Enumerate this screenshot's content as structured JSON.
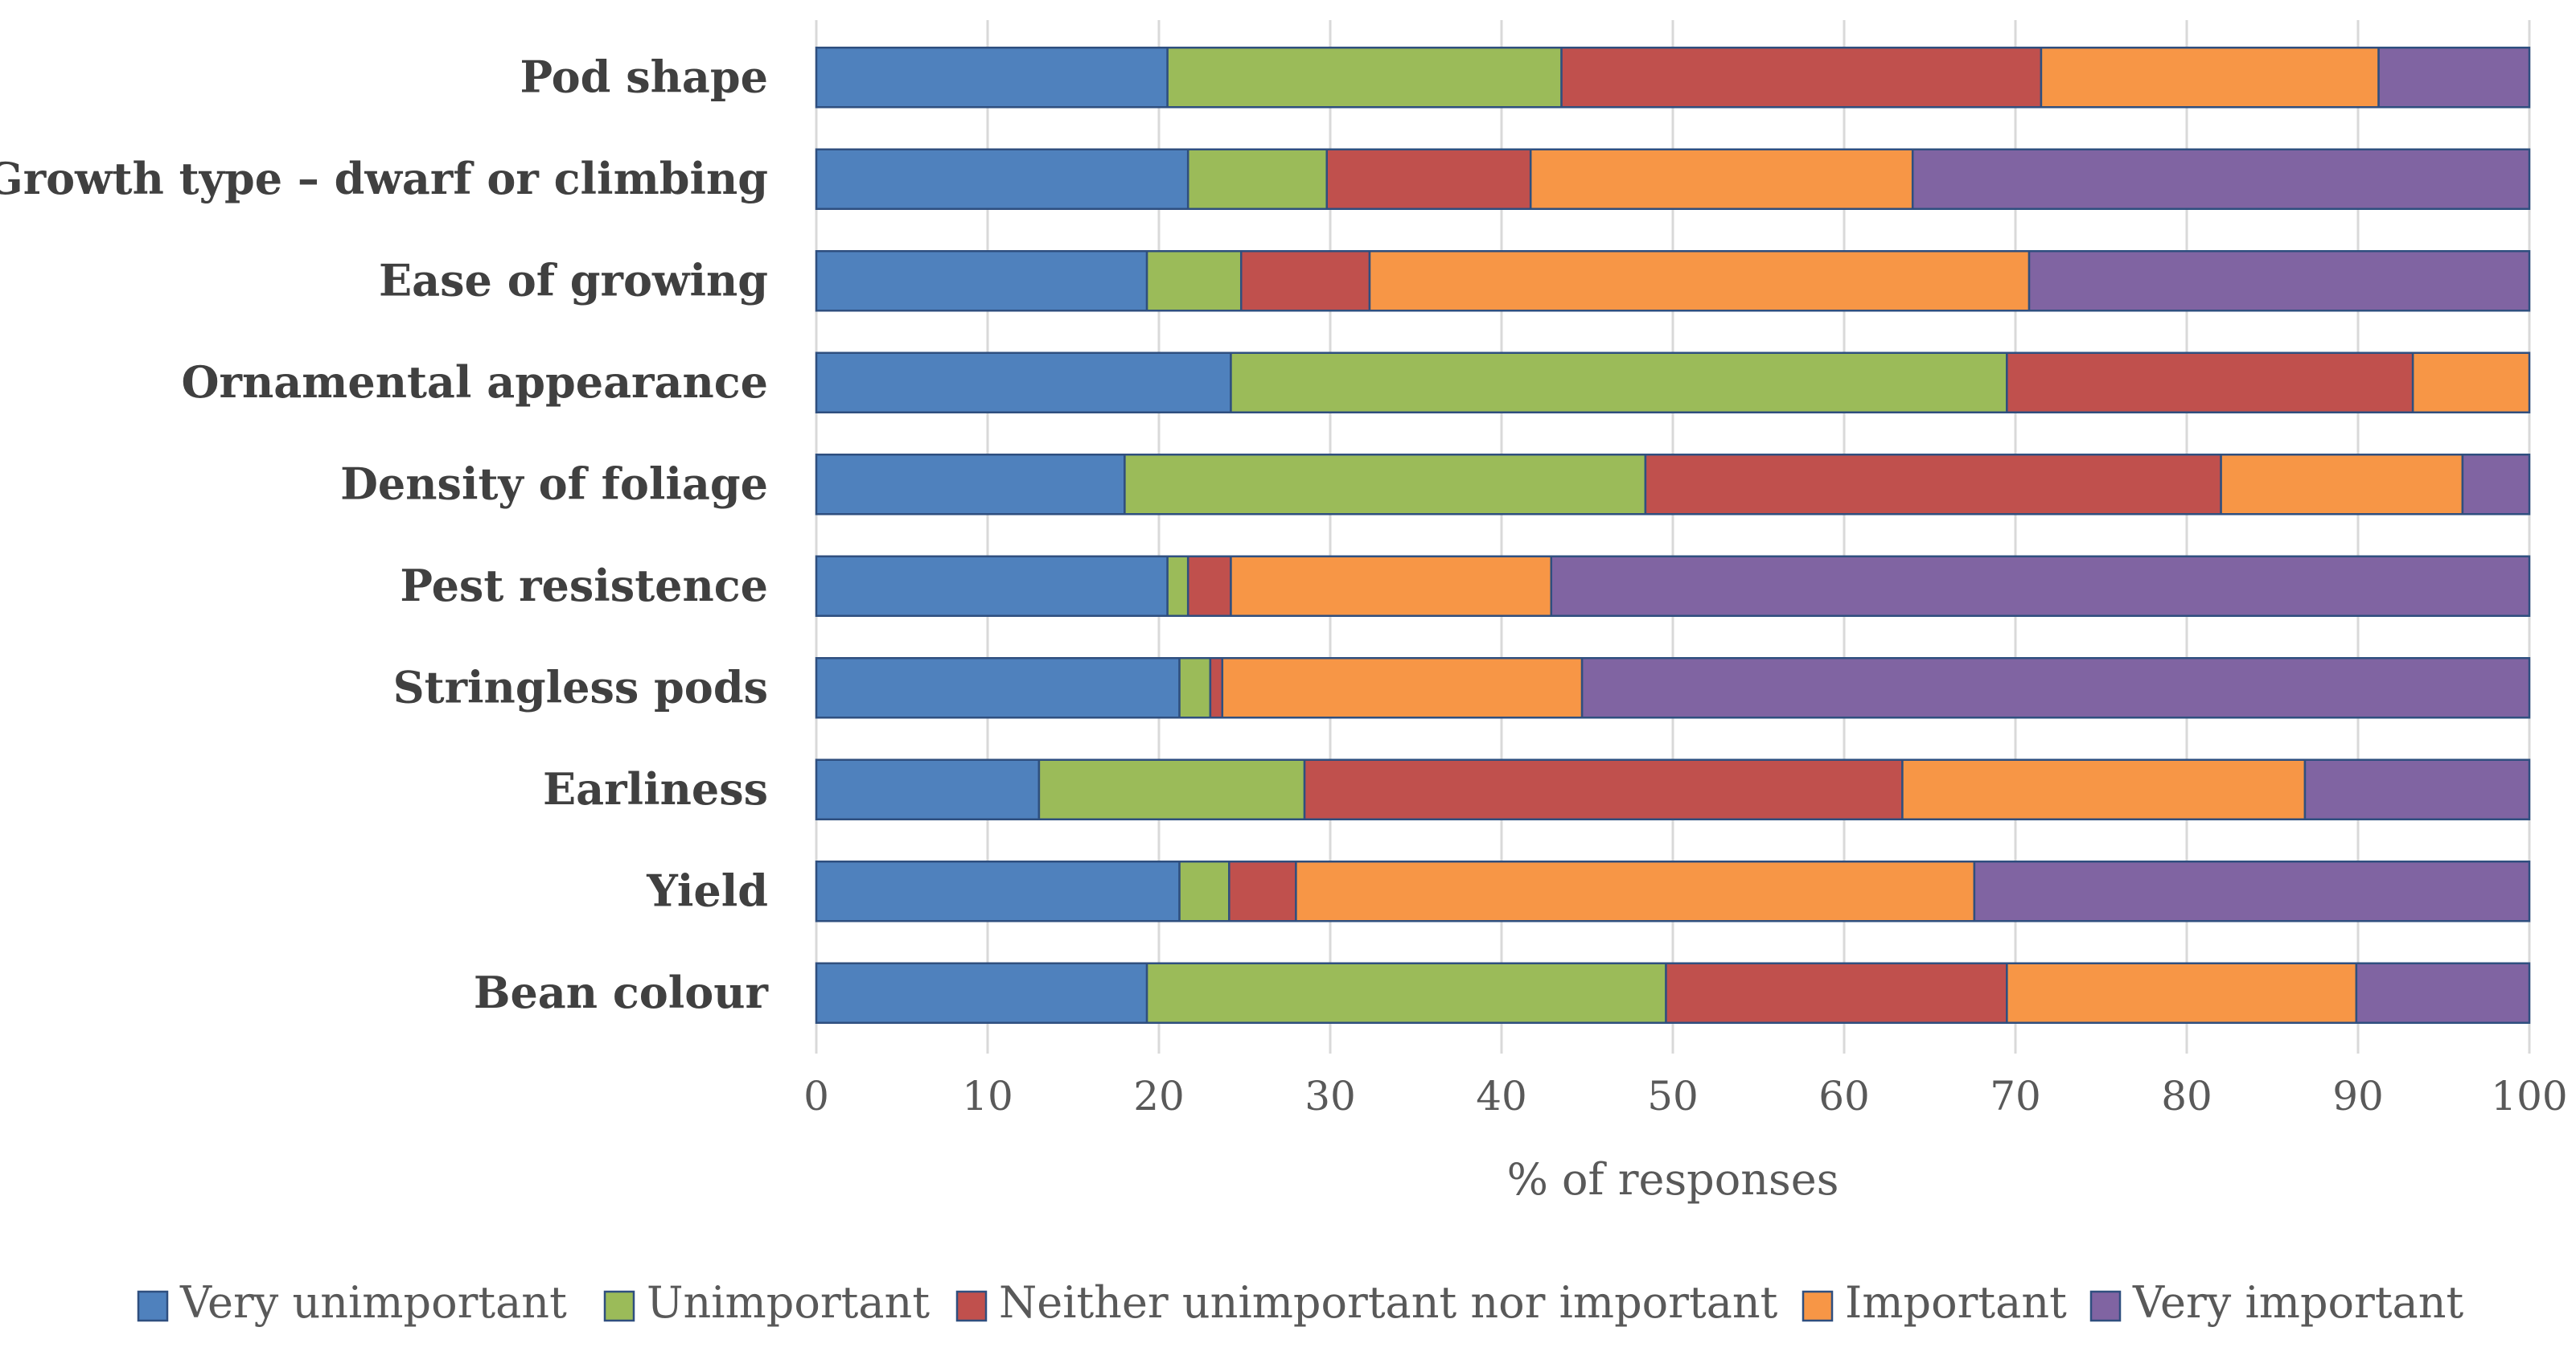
{
  "chart_data": {
    "type": "bar",
    "orientation": "horizontal",
    "stacked": true,
    "title": "",
    "xlabel": "% of responses",
    "ylabel": "",
    "xlim": [
      0,
      100
    ],
    "xticks": [
      0,
      10,
      20,
      30,
      40,
      50,
      60,
      70,
      80,
      90,
      100
    ],
    "grid": true,
    "legend_position": "bottom",
    "categories": [
      "Pod shape",
      "Growth type – dwarf or climbing",
      "Ease of growing",
      "Ornamental appearance",
      "Density of foliage",
      "Pest resistence",
      "Stringless pods",
      "Earliness",
      "Yield",
      "Bean colour"
    ],
    "series": [
      {
        "name": "Very unimportant",
        "color": "#4f81bd",
        "values": [
          20.5,
          21.7,
          19.3,
          24.2,
          18.0,
          20.5,
          21.2,
          13.0,
          21.2,
          19.3
        ]
      },
      {
        "name": "Unimportant",
        "color": "#9bbb59",
        "values": [
          23.0,
          8.1,
          5.5,
          45.3,
          30.4,
          1.2,
          1.8,
          15.5,
          2.9,
          30.3
        ]
      },
      {
        "name": "Neither unimportant nor important",
        "color": "#c0504d",
        "values": [
          28.0,
          11.9,
          7.5,
          23.7,
          33.6,
          2.5,
          0.7,
          34.9,
          3.9,
          19.9
        ]
      },
      {
        "name": "Important",
        "color": "#f79646",
        "values": [
          19.7,
          22.3,
          38.5,
          6.8,
          14.1,
          18.7,
          21.0,
          23.5,
          39.6,
          20.4
        ]
      },
      {
        "name": "Very important",
        "color": "#8064a2",
        "values": [
          8.8,
          36.0,
          29.2,
          0.0,
          3.9,
          57.1,
          55.3,
          13.1,
          32.4,
          10.1
        ]
      }
    ]
  }
}
